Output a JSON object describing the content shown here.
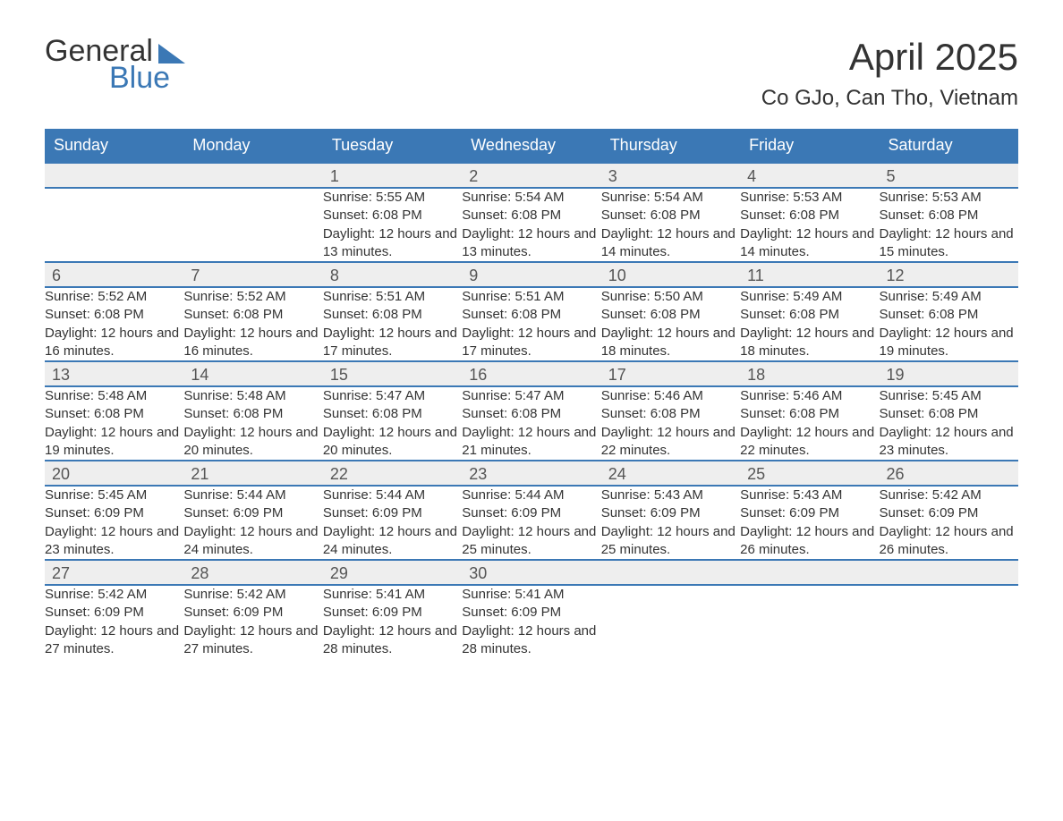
{
  "logo": {
    "top": "General",
    "bottom": "Blue"
  },
  "title": "April 2025",
  "location": "Co GJo, Can Tho, Vietnam",
  "columns": [
    "Sunday",
    "Monday",
    "Tuesday",
    "Wednesday",
    "Thursday",
    "Friday",
    "Saturday"
  ],
  "colors": {
    "accent": "#3b78b5",
    "header_text": "#ffffff",
    "daynum_bg": "#eeeeee",
    "text": "#333333",
    "background": "#ffffff"
  },
  "layout": {
    "cols": 7,
    "header_fontsize": 18,
    "title_fontsize": 42,
    "location_fontsize": 24,
    "daynum_fontsize": 18,
    "body_fontsize": 15
  },
  "weeks": [
    [
      null,
      null,
      {
        "d": "1",
        "sr": "5:55 AM",
        "ss": "6:08 PM",
        "dl": "12 hours and 13 minutes."
      },
      {
        "d": "2",
        "sr": "5:54 AM",
        "ss": "6:08 PM",
        "dl": "12 hours and 13 minutes."
      },
      {
        "d": "3",
        "sr": "5:54 AM",
        "ss": "6:08 PM",
        "dl": "12 hours and 14 minutes."
      },
      {
        "d": "4",
        "sr": "5:53 AM",
        "ss": "6:08 PM",
        "dl": "12 hours and 14 minutes."
      },
      {
        "d": "5",
        "sr": "5:53 AM",
        "ss": "6:08 PM",
        "dl": "12 hours and 15 minutes."
      }
    ],
    [
      {
        "d": "6",
        "sr": "5:52 AM",
        "ss": "6:08 PM",
        "dl": "12 hours and 16 minutes."
      },
      {
        "d": "7",
        "sr": "5:52 AM",
        "ss": "6:08 PM",
        "dl": "12 hours and 16 minutes."
      },
      {
        "d": "8",
        "sr": "5:51 AM",
        "ss": "6:08 PM",
        "dl": "12 hours and 17 minutes."
      },
      {
        "d": "9",
        "sr": "5:51 AM",
        "ss": "6:08 PM",
        "dl": "12 hours and 17 minutes."
      },
      {
        "d": "10",
        "sr": "5:50 AM",
        "ss": "6:08 PM",
        "dl": "12 hours and 18 minutes."
      },
      {
        "d": "11",
        "sr": "5:49 AM",
        "ss": "6:08 PM",
        "dl": "12 hours and 18 minutes."
      },
      {
        "d": "12",
        "sr": "5:49 AM",
        "ss": "6:08 PM",
        "dl": "12 hours and 19 minutes."
      }
    ],
    [
      {
        "d": "13",
        "sr": "5:48 AM",
        "ss": "6:08 PM",
        "dl": "12 hours and 19 minutes."
      },
      {
        "d": "14",
        "sr": "5:48 AM",
        "ss": "6:08 PM",
        "dl": "12 hours and 20 minutes."
      },
      {
        "d": "15",
        "sr": "5:47 AM",
        "ss": "6:08 PM",
        "dl": "12 hours and 20 minutes."
      },
      {
        "d": "16",
        "sr": "5:47 AM",
        "ss": "6:08 PM",
        "dl": "12 hours and 21 minutes."
      },
      {
        "d": "17",
        "sr": "5:46 AM",
        "ss": "6:08 PM",
        "dl": "12 hours and 22 minutes."
      },
      {
        "d": "18",
        "sr": "5:46 AM",
        "ss": "6:08 PM",
        "dl": "12 hours and 22 minutes."
      },
      {
        "d": "19",
        "sr": "5:45 AM",
        "ss": "6:08 PM",
        "dl": "12 hours and 23 minutes."
      }
    ],
    [
      {
        "d": "20",
        "sr": "5:45 AM",
        "ss": "6:09 PM",
        "dl": "12 hours and 23 minutes."
      },
      {
        "d": "21",
        "sr": "5:44 AM",
        "ss": "6:09 PM",
        "dl": "12 hours and 24 minutes."
      },
      {
        "d": "22",
        "sr": "5:44 AM",
        "ss": "6:09 PM",
        "dl": "12 hours and 24 minutes."
      },
      {
        "d": "23",
        "sr": "5:44 AM",
        "ss": "6:09 PM",
        "dl": "12 hours and 25 minutes."
      },
      {
        "d": "24",
        "sr": "5:43 AM",
        "ss": "6:09 PM",
        "dl": "12 hours and 25 minutes."
      },
      {
        "d": "25",
        "sr": "5:43 AM",
        "ss": "6:09 PM",
        "dl": "12 hours and 26 minutes."
      },
      {
        "d": "26",
        "sr": "5:42 AM",
        "ss": "6:09 PM",
        "dl": "12 hours and 26 minutes."
      }
    ],
    [
      {
        "d": "27",
        "sr": "5:42 AM",
        "ss": "6:09 PM",
        "dl": "12 hours and 27 minutes."
      },
      {
        "d": "28",
        "sr": "5:42 AM",
        "ss": "6:09 PM",
        "dl": "12 hours and 27 minutes."
      },
      {
        "d": "29",
        "sr": "5:41 AM",
        "ss": "6:09 PM",
        "dl": "12 hours and 28 minutes."
      },
      {
        "d": "30",
        "sr": "5:41 AM",
        "ss": "6:09 PM",
        "dl": "12 hours and 28 minutes."
      },
      null,
      null,
      null
    ]
  ],
  "labels": {
    "sunrise": "Sunrise: ",
    "sunset": "Sunset: ",
    "daylight": "Daylight: "
  }
}
